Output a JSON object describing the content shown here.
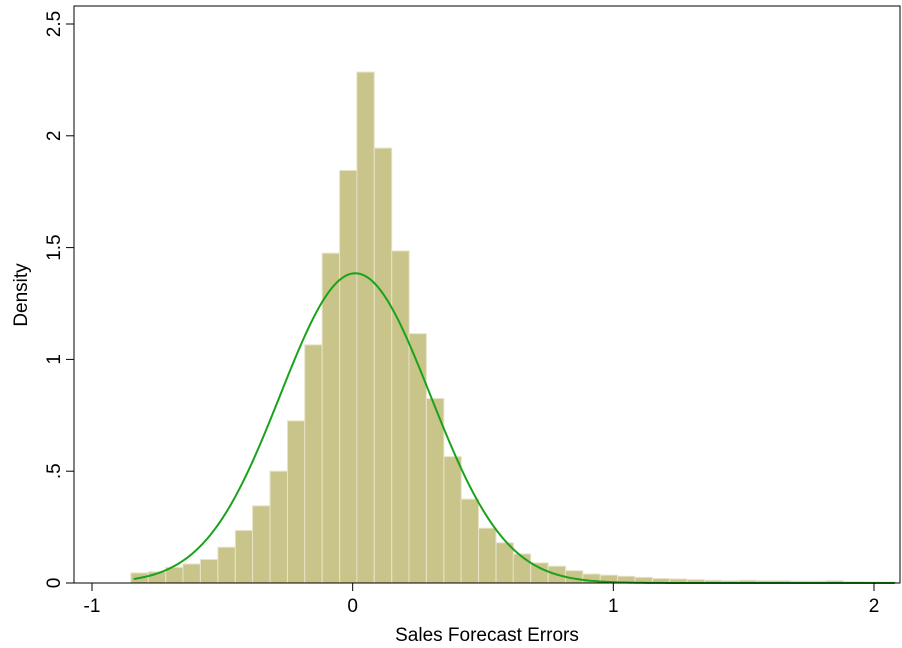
{
  "chart_data": {
    "type": "bar",
    "xlabel": "Sales Forecast Errors",
    "ylabel": "Density",
    "xlim": [
      -1.02,
      2.08
    ],
    "ylim": [
      0,
      2.5
    ],
    "x_ticks": [
      {
        "value": -1,
        "label": "-1"
      },
      {
        "value": 0,
        "label": "0"
      },
      {
        "value": 1,
        "label": "1"
      },
      {
        "value": 2,
        "label": "2"
      }
    ],
    "y_ticks": [
      {
        "value": 0,
        "label": "0"
      },
      {
        "value": 0.5,
        "label": ".5"
      },
      {
        "value": 1,
        "label": "1"
      },
      {
        "value": 1.5,
        "label": "1.5"
      },
      {
        "value": 2,
        "label": "2"
      },
      {
        "value": 2.5,
        "label": "2.5"
      }
    ],
    "grid": false,
    "legend": "none",
    "bin_width": 0.0667,
    "bins": [
      {
        "x0": -0.851,
        "value": 0.045
      },
      {
        "x0": -0.784,
        "value": 0.05
      },
      {
        "x0": -0.717,
        "value": 0.07
      },
      {
        "x0": -0.651,
        "value": 0.085
      },
      {
        "x0": -0.584,
        "value": 0.105
      },
      {
        "x0": -0.517,
        "value": 0.16
      },
      {
        "x0": -0.45,
        "value": 0.235
      },
      {
        "x0": -0.384,
        "value": 0.345
      },
      {
        "x0": -0.317,
        "value": 0.5
      },
      {
        "x0": -0.25,
        "value": 0.725
      },
      {
        "x0": -0.184,
        "value": 1.065
      },
      {
        "x0": -0.117,
        "value": 1.475
      },
      {
        "x0": -0.05,
        "value": 1.845
      },
      {
        "x0": 0.016,
        "value": 2.285
      },
      {
        "x0": 0.083,
        "value": 1.945
      },
      {
        "x0": 0.15,
        "value": 1.485
      },
      {
        "x0": 0.216,
        "value": 1.115
      },
      {
        "x0": 0.283,
        "value": 0.825
      },
      {
        "x0": 0.35,
        "value": 0.565
      },
      {
        "x0": 0.416,
        "value": 0.375
      },
      {
        "x0": 0.483,
        "value": 0.245
      },
      {
        "x0": 0.55,
        "value": 0.18
      },
      {
        "x0": 0.616,
        "value": 0.13
      },
      {
        "x0": 0.683,
        "value": 0.09
      },
      {
        "x0": 0.75,
        "value": 0.075
      },
      {
        "x0": 0.816,
        "value": 0.055
      },
      {
        "x0": 0.883,
        "value": 0.04
      },
      {
        "x0": 0.95,
        "value": 0.035
      },
      {
        "x0": 1.016,
        "value": 0.03
      },
      {
        "x0": 1.083,
        "value": 0.025
      },
      {
        "x0": 1.15,
        "value": 0.02
      },
      {
        "x0": 1.216,
        "value": 0.018
      },
      {
        "x0": 1.283,
        "value": 0.015
      },
      {
        "x0": 1.35,
        "value": 0.012
      },
      {
        "x0": 1.416,
        "value": 0.01
      },
      {
        "x0": 1.483,
        "value": 0.012
      },
      {
        "x0": 1.55,
        "value": 0.01
      },
      {
        "x0": 1.616,
        "value": 0.01
      },
      {
        "x0": 1.683,
        "value": 0.008
      },
      {
        "x0": 1.75,
        "value": 0.008
      },
      {
        "x0": 1.816,
        "value": 0.01
      },
      {
        "x0": 1.883,
        "value": 0.006
      },
      {
        "x0": 1.95,
        "value": 0.005
      },
      {
        "x0": 2.016,
        "value": 0.004
      }
    ],
    "normal_curve": {
      "mean": 0.01,
      "sd": 0.288,
      "x_range": [
        -0.84,
        2.08
      ],
      "color": "#1aa31a"
    },
    "colors": {
      "bar_fill": "#c9c48a",
      "bar_stroke": "#e6e3c8",
      "axis": "#000000"
    }
  }
}
